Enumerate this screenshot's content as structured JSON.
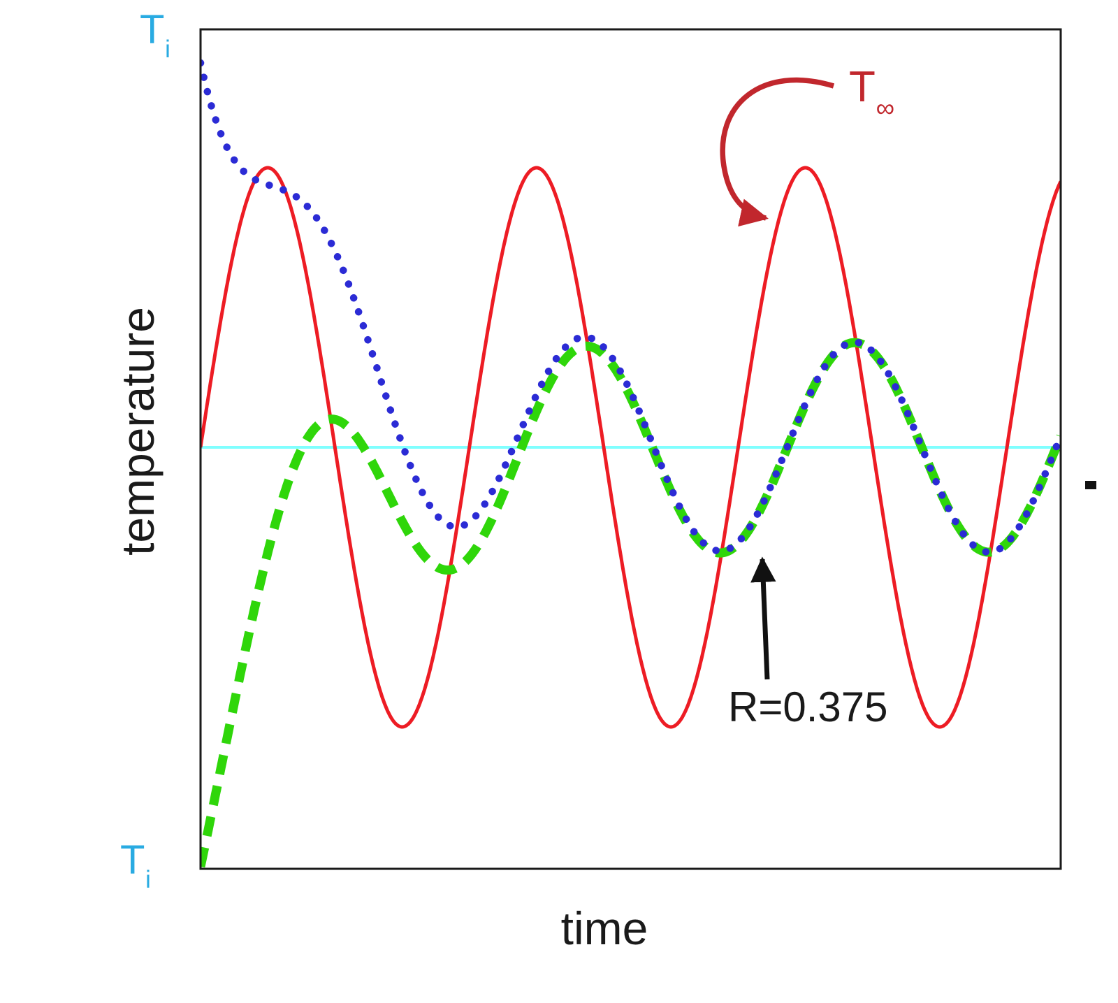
{
  "labels": {
    "y_axis": "temperature",
    "x_axis": "time",
    "ti_top": {
      "base": "T",
      "sub": "i"
    },
    "ti_bottom": {
      "base": "T",
      "sub": "i"
    },
    "t_infinity": {
      "base": "T",
      "sub": "∞"
    },
    "r_value": "R=0.375"
  },
  "colors": {
    "ambient": "#ed1c24",
    "hot_start": "#2b2bd5",
    "cold_start": "#2fd60a",
    "mean_line": "#80ffff",
    "ti_label": "#29abe2",
    "annotation_red": "#c1272d",
    "axis_text": "#1a1a1a"
  },
  "chart_data": {
    "type": "line",
    "title": "",
    "xlabel": "time",
    "ylabel": "temperature",
    "x_range_periods": [
      0,
      3.2
    ],
    "y_unit": "relative temperature (mean = 0, ambient amplitude = 1)",
    "grid": false,
    "legend": false,
    "amplitude_ratio_R": 0.375,
    "annotations": [
      {
        "text": "T∞",
        "points_to": "ambient sinusoid (red solid curve)",
        "color": "#c1272d"
      },
      {
        "text": "R=0.375",
        "points_to": "steady-state response curves (amplitude ratio)",
        "color": "#1a1a1a"
      },
      {
        "text": "Ti",
        "position": "hot initial temperature, top left",
        "color": "#29abe2"
      },
      {
        "text": "Ti",
        "position": "cold initial temperature, bottom left",
        "color": "#29abe2"
      }
    ],
    "series": [
      {
        "id": "mean-temperature-line",
        "name": "mean temperature",
        "style": "solid",
        "color": "#80ffff",
        "model": "constant",
        "value": 0,
        "z": 0
      },
      {
        "id": "ambient-temperature-curve",
        "name": "ambient temperature T∞",
        "style": "solid",
        "color": "#ed1c24",
        "model": "sine",
        "amplitude": 1.0,
        "period": 1.0,
        "phase": 0,
        "mean": 0,
        "z": 1
      },
      {
        "id": "cold-start-response-curve",
        "name": "body response, cold initial condition Ti",
        "style": "dashed",
        "color": "#2fd60a",
        "model": "transient_plus_lagged_sine",
        "initial_value": -1.5,
        "steady_amplitude": 0.375,
        "phase_lag_rad": 1.15,
        "decay_tau_periods": 0.32,
        "mean": 0,
        "z": 2
      },
      {
        "id": "hot-start-response-curve",
        "name": "body response, hot initial condition Ti",
        "style": "dotted",
        "color": "#2b2bd5",
        "model": "transient_plus_lagged_sine",
        "initial_value": 1.375,
        "steady_amplitude": 0.375,
        "phase_lag_rad": 1.15,
        "decay_tau_periods": 0.32,
        "mean": 0,
        "z": 3
      }
    ]
  }
}
